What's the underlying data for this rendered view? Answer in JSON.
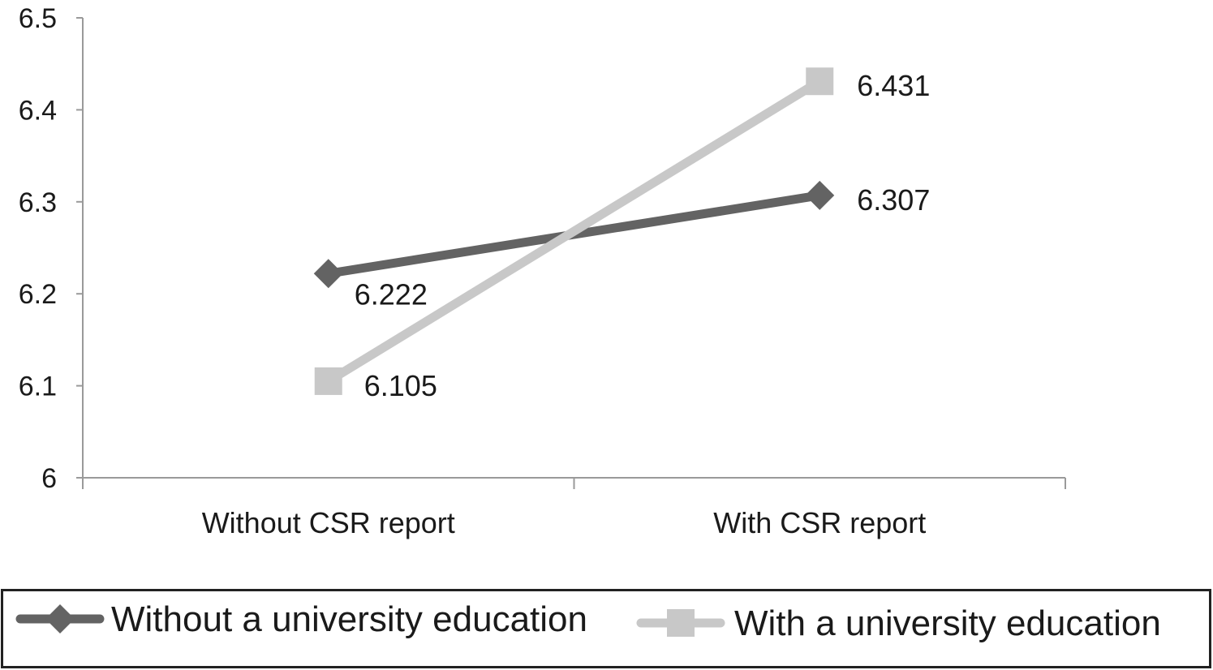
{
  "chart_data": {
    "type": "line",
    "title": "",
    "xlabel": "",
    "ylabel": "",
    "categories": [
      "Without CSR report",
      "With CSR report"
    ],
    "ylim": [
      6,
      6.5
    ],
    "yticks": [
      "6",
      "6.1",
      "6.2",
      "6.3",
      "6.4",
      "6.5"
    ],
    "grid": false,
    "legend_position": "bottom",
    "series": [
      {
        "name": "Without a university education",
        "values": [
          6.222,
          6.307
        ],
        "labels": [
          "6.222",
          "6.307"
        ],
        "marker": "diamond",
        "color": "#636363"
      },
      {
        "name": "With a university education",
        "values": [
          6.105,
          6.431
        ],
        "labels": [
          "6.105",
          "6.431"
        ],
        "marker": "square",
        "color": "#c8c8c8"
      }
    ]
  }
}
